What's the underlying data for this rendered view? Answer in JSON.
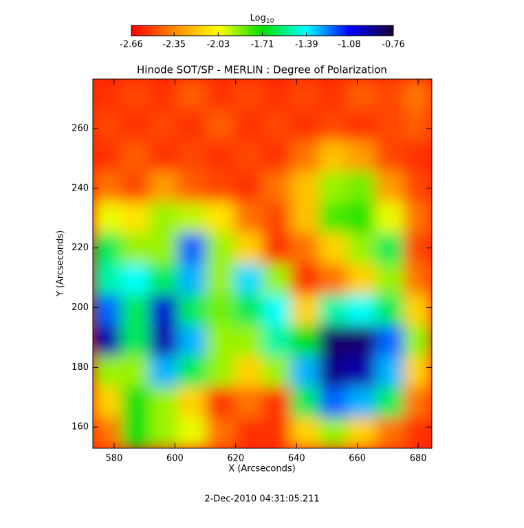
{
  "chart_data": {
    "type": "heatmap",
    "title": "Hinode SOT/SP - MERLIN : Degree of Polarization",
    "xlabel": "X (Arcseconds)",
    "ylabel": "Y (Arcseconds)",
    "footer": "2-Dec-2010 04:31:05.211",
    "colorbar_label": "Log",
    "colorbar_label_subscript": "10",
    "colorbar_lim": [
      -2.66,
      -0.76
    ],
    "colorbar_ticks": [
      -2.66,
      -2.35,
      -2.03,
      -1.71,
      -1.39,
      -1.08,
      -0.76
    ],
    "colorscale": [
      "#ff0000",
      "#ff8c00",
      "#ffff00",
      "#00e000",
      "#00ffff",
      "#0000ff",
      "#1a0033"
    ],
    "xlim": [
      573,
      684.5
    ],
    "ylim": [
      152.9,
      276.6
    ],
    "xticks": [
      580,
      600,
      620,
      640,
      660,
      680
    ],
    "yticks": [
      160,
      180,
      200,
      220,
      240,
      260
    ],
    "values": [
      [
        -2.55,
        -2.5,
        -2.55,
        -2.45,
        -2.55,
        -2.5,
        -2.55,
        -2.5,
        -2.55,
        -2.45,
        -2.5,
        -2.4
      ],
      [
        -2.5,
        -2.55,
        -2.5,
        -2.55,
        -2.45,
        -2.55,
        -2.5,
        -2.55,
        -2.5,
        -2.55,
        -2.5,
        -2.45
      ],
      [
        -2.55,
        -2.45,
        -2.55,
        -2.5,
        -2.55,
        -2.5,
        -2.55,
        -2.4,
        -2.2,
        -2.3,
        -2.5,
        -2.55
      ],
      [
        -2.4,
        -2.5,
        -2.3,
        -2.45,
        -2.5,
        -2.55,
        -2.4,
        -2.2,
        -1.9,
        -1.85,
        -2.3,
        -2.5
      ],
      [
        -2.0,
        -2.1,
        -1.9,
        -1.95,
        -2.1,
        -2.4,
        -2.5,
        -2.2,
        -1.8,
        -1.75,
        -2.0,
        -2.4
      ],
      [
        -1.6,
        -1.9,
        -1.9,
        -1.2,
        -1.9,
        -2.15,
        -2.55,
        -2.4,
        -2.15,
        -1.9,
        -1.6,
        -2.5
      ],
      [
        -1.5,
        -1.4,
        -1.6,
        -1.3,
        -1.9,
        -1.35,
        -1.9,
        -2.55,
        -2.4,
        -2.15,
        -1.9,
        -2.4
      ],
      [
        -1.2,
        -1.6,
        -1.0,
        -1.6,
        -1.85,
        -1.6,
        -1.4,
        -2.15,
        -1.5,
        -1.4,
        -1.6,
        -2.15
      ],
      [
        -0.95,
        -1.6,
        -0.95,
        -1.3,
        -1.9,
        -1.9,
        -1.5,
        -1.7,
        -0.85,
        -0.85,
        -1.2,
        -1.9
      ],
      [
        -1.9,
        -1.9,
        -1.3,
        -1.6,
        -1.9,
        -2.15,
        -1.9,
        -1.3,
        -0.9,
        -0.95,
        -1.3,
        -2.15
      ],
      [
        -2.15,
        -1.7,
        -1.9,
        -2.15,
        -2.55,
        -2.4,
        -2.55,
        -1.6,
        -1.2,
        -1.3,
        -1.6,
        -2.4
      ],
      [
        -2.4,
        -1.7,
        -1.9,
        -2.0,
        -2.4,
        -2.55,
        -2.55,
        -2.15,
        -1.9,
        -2.15,
        -2.4,
        -2.55
      ]
    ]
  }
}
